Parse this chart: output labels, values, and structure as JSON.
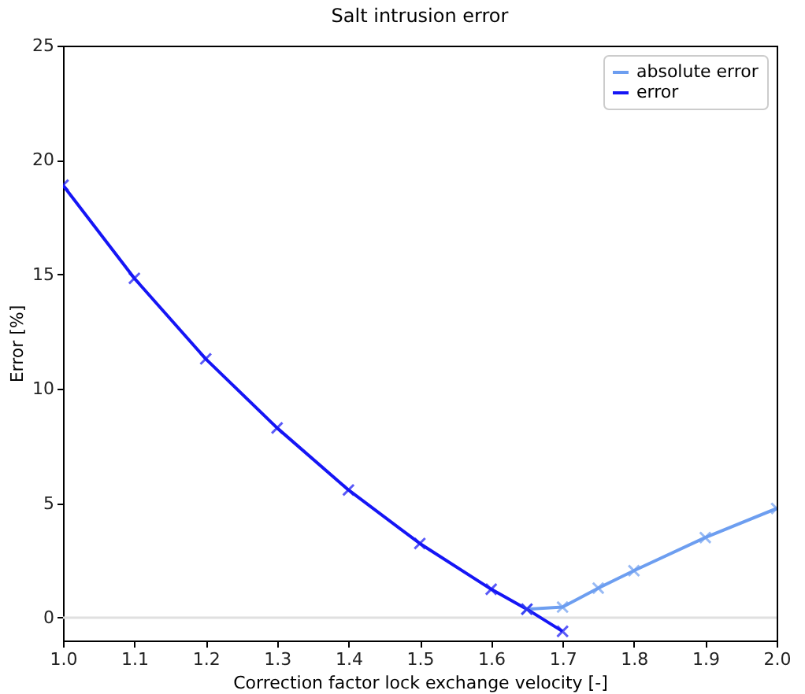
{
  "chart_data": {
    "type": "line",
    "title": "Salt intrusion error",
    "xlabel": "Correction factor lock exchange velocity [-]",
    "ylabel": "Error [%]",
    "series": [
      {
        "name": "absolute error",
        "color": "#6d9ef0",
        "x": [
          1.65,
          1.7,
          1.75,
          1.8,
          1.9,
          2.0
        ],
        "values": [
          0.37,
          0.46,
          1.29,
          2.05,
          3.5,
          4.77
        ]
      },
      {
        "name": "error",
        "color": "#1515f5",
        "x": [
          1.0,
          1.1,
          1.2,
          1.3,
          1.4,
          1.5,
          1.6,
          1.65,
          1.7
        ],
        "values": [
          18.9,
          14.83,
          11.31,
          8.29,
          5.58,
          3.24,
          1.24,
          0.37,
          -0.6
        ]
      }
    ],
    "xlim": [
      1.0,
      2.0
    ],
    "xticks": [
      {
        "value": 1.0,
        "label": "1.0"
      },
      1.1,
      1.2,
      1.3,
      1.4,
      1.5,
      1.6,
      1.7,
      1.8,
      1.9,
      {
        "value": 2.0,
        "label": "2.0"
      }
    ],
    "ylim": [
      -1,
      25
    ],
    "yticks": [
      0,
      5,
      10,
      15,
      20,
      25
    ],
    "ref_lines": [
      {
        "axis": "y",
        "value": 0,
        "color": "#e0e0e0"
      }
    ],
    "legend": "top right",
    "marker": "cross",
    "grid": false
  }
}
